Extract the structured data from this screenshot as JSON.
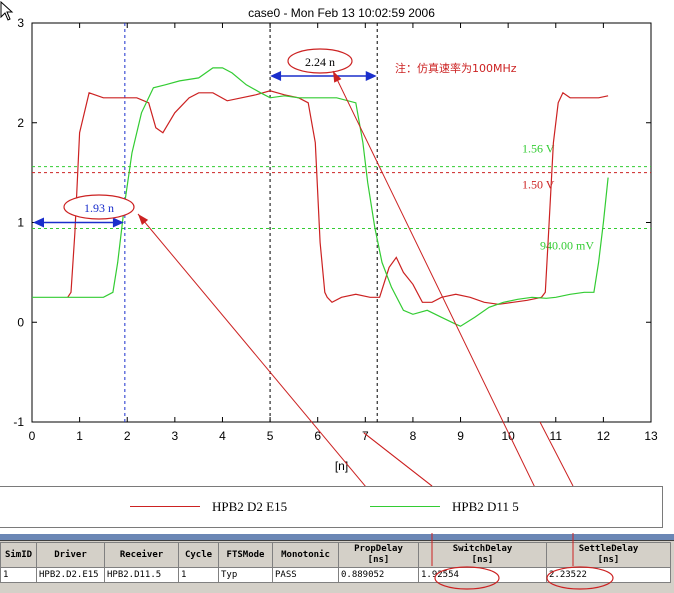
{
  "chart_data": {
    "type": "line",
    "title": "case0 - Mon Feb 13 10:02:59 2006",
    "xlabel": "[n]",
    "ylabel": "",
    "xlim": [
      0,
      13
    ],
    "ylim": [
      -1,
      3
    ],
    "x_ticks": [
      "0",
      "1",
      "2",
      "3",
      "4",
      "5",
      "6",
      "7",
      "8",
      "9",
      "10",
      "11",
      "12",
      "13"
    ],
    "y_ticks": [
      "-1",
      "0",
      "1",
      "2",
      "3"
    ],
    "series": [
      {
        "name": "HPB2 D2 E15",
        "color": "#cc2222",
        "x": [
          0.75,
          0.82,
          0.9,
          1.0,
          1.2,
          1.5,
          1.8,
          2.0,
          2.2,
          2.45,
          2.6,
          2.75,
          3.0,
          3.3,
          3.5,
          3.8,
          4.1,
          4.4,
          4.7,
          5.0,
          5.3,
          5.6,
          5.8,
          5.95,
          6.05,
          6.15,
          6.2,
          6.3,
          6.5,
          6.8,
          7.1,
          7.3,
          7.5,
          7.65,
          7.8,
          8.0,
          8.2,
          8.4,
          8.6,
          8.9,
          9.2,
          9.5,
          9.8,
          10.1,
          10.4,
          10.7,
          10.78,
          10.85,
          10.95,
          11.05,
          11.15,
          11.3,
          11.6,
          11.9,
          12.1
        ],
        "y": [
          0.25,
          0.3,
          0.9,
          1.9,
          2.3,
          2.25,
          2.25,
          2.25,
          2.25,
          2.2,
          1.95,
          1.9,
          2.1,
          2.25,
          2.3,
          2.3,
          2.22,
          2.25,
          2.28,
          2.32,
          2.28,
          2.25,
          2.2,
          1.8,
          0.8,
          0.3,
          0.25,
          0.2,
          0.25,
          0.28,
          0.25,
          0.25,
          0.55,
          0.65,
          0.5,
          0.38,
          0.2,
          0.2,
          0.25,
          0.28,
          0.25,
          0.2,
          0.18,
          0.2,
          0.22,
          0.25,
          0.3,
          0.9,
          1.8,
          2.2,
          2.3,
          2.25,
          2.25,
          2.25,
          2.27
        ]
      },
      {
        "name": "HPB2 D11 5",
        "color": "#33cc33",
        "x": [
          0,
          0.5,
          1.0,
          1.5,
          1.7,
          1.8,
          1.95,
          2.1,
          2.3,
          2.55,
          2.8,
          3.1,
          3.5,
          3.8,
          4.0,
          4.2,
          4.5,
          4.8,
          5.0,
          5.3,
          5.6,
          6.0,
          6.4,
          6.8,
          6.95,
          7.05,
          7.2,
          7.35,
          7.55,
          7.8,
          8.0,
          8.3,
          8.6,
          8.9,
          9.0,
          9.3,
          9.6,
          9.9,
          10.2,
          10.5,
          10.8,
          11.0,
          11.3,
          11.6,
          11.8,
          11.9,
          12.0,
          12.1
        ],
        "y": [
          0.25,
          0.25,
          0.25,
          0.25,
          0.3,
          0.6,
          1.2,
          1.7,
          2.1,
          2.35,
          2.38,
          2.42,
          2.45,
          2.55,
          2.55,
          2.5,
          2.38,
          2.3,
          2.25,
          2.27,
          2.25,
          2.25,
          2.25,
          2.2,
          1.8,
          1.4,
          0.95,
          0.6,
          0.35,
          0.12,
          0.08,
          0.12,
          0.05,
          -0.02,
          -0.04,
          0.05,
          0.15,
          0.2,
          0.23,
          0.25,
          0.24,
          0.25,
          0.28,
          0.3,
          0.3,
          0.6,
          1.0,
          1.45
        ]
      }
    ],
    "reference_lines": [
      {
        "y": 1.56,
        "label": "1.56 V",
        "color": "#33cc33"
      },
      {
        "y": 1.5,
        "label": "1.50 V",
        "color": "#cc2222"
      },
      {
        "y": 0.94,
        "label": "940.00 mV",
        "color": "#33cc33"
      }
    ],
    "cursors_x": [
      1.95,
      5.0,
      7.25
    ],
    "annotations": [
      {
        "text": "1.93 n",
        "x1": 0,
        "x2": 1.93,
        "y": 1.0
      },
      {
        "text": "2.24 n",
        "x1": 5.0,
        "x2": 7.24,
        "y": 2.48
      },
      {
        "text": "注：仿真速率为100MHz"
      }
    ]
  },
  "legend": [
    {
      "label": "HPB2 D2 E15",
      "color": "#cc2222"
    },
    {
      "label": "HPB2 D11 5",
      "color": "#33cc33"
    }
  ],
  "table": {
    "headers": [
      "SimID",
      "Driver",
      "Receiver",
      "Cycle",
      "FTSMode",
      "Monotonic",
      "PropDelay\n[ns]",
      "SwitchDelay\n[ns]",
      "SettleDelay\n[ns]"
    ],
    "rows": [
      [
        "1",
        "HPB2.D2.E15",
        "HPB2.D11.5",
        "1",
        "Typ",
        "PASS",
        "0.889052",
        "1.92554",
        "2.23522"
      ]
    ]
  },
  "colors": {
    "arrow": "#1a2ecc",
    "highlight": "#cc2222"
  }
}
